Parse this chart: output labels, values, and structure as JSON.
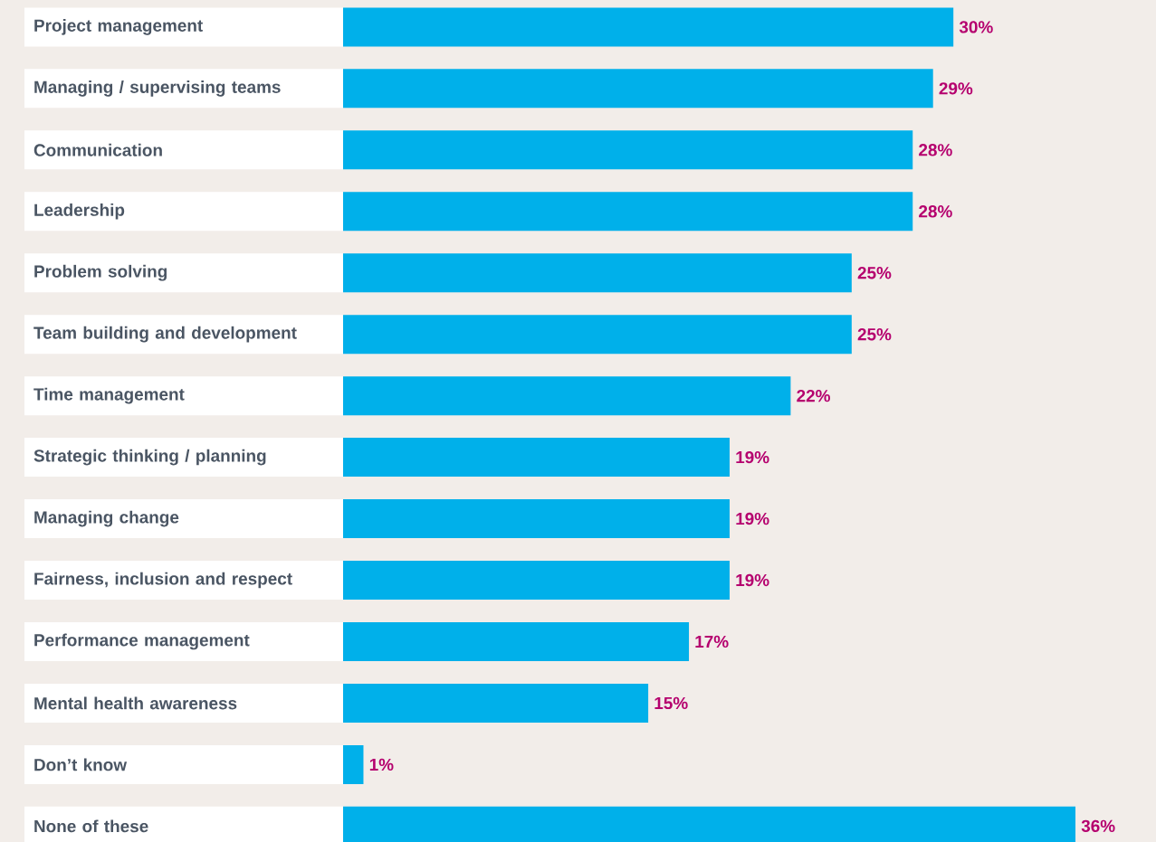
{
  "chart_data": {
    "type": "bar",
    "orientation": "horizontal",
    "categories": [
      "Project management",
      "Managing / supervising teams",
      "Communication",
      "Leadership",
      "Problem solving",
      "Team building and development",
      "Time management",
      "Strategic thinking / planning",
      "Managing change",
      "Fairness, inclusion and respect",
      "Performance management",
      "Mental health awareness",
      "Don’t know",
      "None of these"
    ],
    "values": [
      30,
      29,
      28,
      28,
      25,
      25,
      22,
      19,
      19,
      19,
      17,
      15,
      1,
      36
    ],
    "value_labels": [
      "30%",
      "29%",
      "28%",
      "28%",
      "25%",
      "25%",
      "22%",
      "19%",
      "19%",
      "19%",
      "17%",
      "15%",
      "1%",
      "36%"
    ],
    "color": "#00b0ea",
    "grid": false
  }
}
